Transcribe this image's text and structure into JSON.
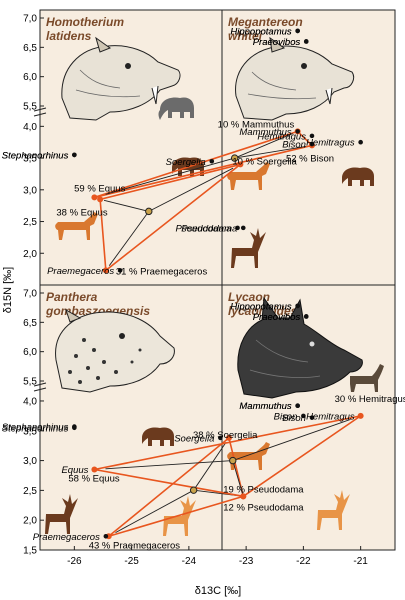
{
  "figure": {
    "xlabel": "δ13C [‰]",
    "ylabel": "δ15N [‰]",
    "xticks": [
      "-26",
      "-25",
      "-24",
      "-23",
      "-22",
      "-21"
    ],
    "yticks": [
      "7,0",
      "6,5",
      "6,0",
      "5,5",
      "4,0",
      "3,5",
      "3,0",
      "2,5",
      "2,0",
      "1,5"
    ]
  },
  "colors": {
    "panel_bg": "#f7ede0",
    "orange": "#e8561f",
    "brown": "#6b3a1e",
    "animal_orange": "#e89447",
    "grey": "#999999"
  },
  "chart_data": [
    {
      "type": "scatter",
      "title": "Homotherium latidens",
      "xlim": [
        -26.6,
        -20.4
      ],
      "points": [
        {
          "label": "Hippopotamus",
          "x": -22.1,
          "y": 6.78
        },
        {
          "label": "Praeovibos",
          "x": -21.95,
          "y": 6.6
        },
        {
          "label": "Mammuthus",
          "x": -22.1,
          "y": 3.92
        },
        {
          "label": "Hemitragus",
          "x": -21.85,
          "y": 3.85
        },
        {
          "label": "Bison",
          "x": -21.85,
          "y": 3.7
        },
        {
          "label": "Stephanorhinus",
          "x": -26.0,
          "y": 3.55
        },
        {
          "label": "Soergelia",
          "x": -23.6,
          "y": 3.45
        },
        {
          "label": "Equus",
          "x": -25.65,
          "y": 2.88
        },
        {
          "label": "Pseudodama",
          "x": -23.15,
          "y": 2.4
        },
        {
          "label": "Praemegaceros",
          "x": -25.2,
          "y": 1.73
        }
      ],
      "triangle_labels": [
        "10 % Mammuthus",
        "52 % Bison",
        "38 % Equus"
      ]
    },
    {
      "type": "scatter",
      "title": "Megantereon whitei",
      "xlim": [
        -26.6,
        -20.4
      ],
      "points": [
        {
          "label": "Hippopotamus",
          "x": -22.1,
          "y": 6.78
        },
        {
          "label": "Praeovibos",
          "x": -21.95,
          "y": 6.6
        },
        {
          "label": "Mammuthus",
          "x": -22.1,
          "y": 3.92
        },
        {
          "label": "Hemitragus",
          "x": -21.0,
          "y": 3.75
        },
        {
          "label": "Bison",
          "x": -21.85,
          "y": 3.72
        },
        {
          "label": "Stephanorhinus",
          "x": -26.0,
          "y": 3.55
        },
        {
          "label": "Soergelia",
          "x": -23.1,
          "y": 3.4
        },
        {
          "label": "Equus",
          "x": -25.55,
          "y": 2.85
        },
        {
          "label": "Pseudodama",
          "x": -23.05,
          "y": 2.4
        },
        {
          "label": "Praemegaceros",
          "x": -25.45,
          "y": 1.73
        }
      ],
      "triangle_labels": [
        "10 % Soergelia",
        "59 % Equus",
        "31 % Praemegaceros"
      ]
    },
    {
      "type": "scatter",
      "title": "Panthera gombaszoegensis",
      "xlim": [
        -26.6,
        -20.4
      ],
      "points": [
        {
          "label": "Hippopotamus",
          "x": -22.1,
          "y": 6.78
        },
        {
          "label": "Praeovibos",
          "x": -21.95,
          "y": 6.6
        },
        {
          "label": "Mammuthus",
          "x": -22.1,
          "y": 3.92
        },
        {
          "label": "Hemitragus",
          "x": -21.0,
          "y": 3.75
        },
        {
          "label": "Bison",
          "x": -22.0,
          "y": 3.75
        },
        {
          "label": "Stephanorhinus",
          "x": -26.0,
          "y": 3.57
        },
        {
          "label": "Soergelia",
          "x": -23.3,
          "y": 3.38
        },
        {
          "label": "Equus",
          "x": -25.65,
          "y": 2.85
        },
        {
          "label": "Pseudodama",
          "x": -23.05,
          "y": 2.4
        },
        {
          "label": "Praemegaceros",
          "x": -25.4,
          "y": 1.73
        }
      ],
      "triangle_labels": [
        "38 % Soergelia",
        "19 % Pseudodama",
        "43 % Praemegaceros"
      ]
    },
    {
      "type": "scatter",
      "title": "Lycaon lycaonoides",
      "xlim": [
        -26.6,
        -20.4
      ],
      "points": [
        {
          "label": "Hippopotamus",
          "x": -22.1,
          "y": 6.78
        },
        {
          "label": "Praeovibos",
          "x": -21.95,
          "y": 6.6
        },
        {
          "label": "Mammuthus",
          "x": -22.1,
          "y": 3.92
        },
        {
          "label": "Hemitragus",
          "x": -21.0,
          "y": 3.75
        },
        {
          "label": "Bison",
          "x": -21.85,
          "y": 3.72
        },
        {
          "label": "Stephanorhinus",
          "x": -26.0,
          "y": 3.55
        },
        {
          "label": "Soergelia",
          "x": -23.45,
          "y": 3.38
        },
        {
          "label": "Equus",
          "x": -25.65,
          "y": 2.85
        },
        {
          "label": "Pseudodama",
          "x": -23.05,
          "y": 2.4
        },
        {
          "label": "Praemegaceros",
          "x": -25.45,
          "y": 1.73
        }
      ],
      "triangle_labels": [
        "30 % Hemitragus",
        "58 % Equus",
        "12 % Pseudodama"
      ]
    }
  ]
}
